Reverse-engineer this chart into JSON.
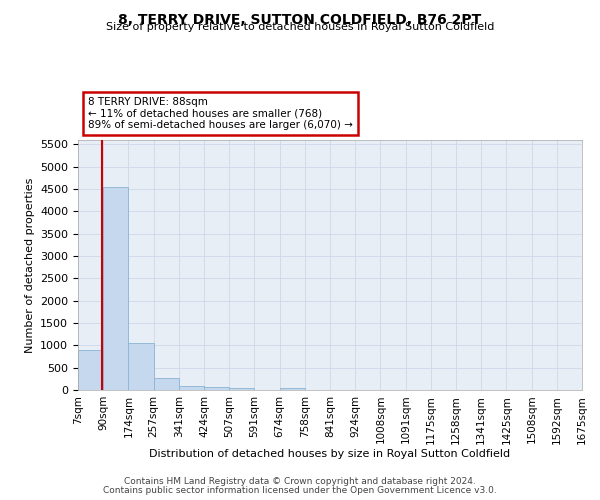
{
  "title": "8, TERRY DRIVE, SUTTON COLDFIELD, B76 2PT",
  "subtitle": "Size of property relative to detached houses in Royal Sutton Coldfield",
  "xlabel": "Distribution of detached houses by size in Royal Sutton Coldfield",
  "ylabel": "Number of detached properties",
  "footnote1": "Contains HM Land Registry data © Crown copyright and database right 2024.",
  "footnote2": "Contains public sector information licensed under the Open Government Licence v3.0.",
  "property_size": 88,
  "annotation_line1": "8 TERRY DRIVE: 88sqm",
  "annotation_line2": "← 11% of detached houses are smaller (768)",
  "annotation_line3": "89% of semi-detached houses are larger (6,070) →",
  "bar_color": "#c5d8ed",
  "bar_edge_color": "#8ab4d4",
  "vline_color": "#cc0000",
  "annotation_box_edgecolor": "#cc0000",
  "grid_color": "#cdd8e8",
  "bg_color": "#e8eef6",
  "bin_edges": [
    7,
    90,
    174,
    257,
    341,
    424,
    507,
    591,
    674,
    758,
    841,
    924,
    1008,
    1091,
    1175,
    1258,
    1341,
    1425,
    1508,
    1592,
    1675
  ],
  "bin_labels": [
    "7sqm",
    "90sqm",
    "174sqm",
    "257sqm",
    "341sqm",
    "424sqm",
    "507sqm",
    "591sqm",
    "674sqm",
    "758sqm",
    "841sqm",
    "924sqm",
    "1008sqm",
    "1091sqm",
    "1175sqm",
    "1258sqm",
    "1341sqm",
    "1425sqm",
    "1508sqm",
    "1592sqm",
    "1675sqm"
  ],
  "bar_heights": [
    900,
    4540,
    1060,
    280,
    85,
    65,
    50,
    0,
    55,
    0,
    0,
    0,
    0,
    0,
    0,
    0,
    0,
    0,
    0,
    0
  ],
  "ylim": [
    0,
    5600
  ],
  "yticks": [
    0,
    500,
    1000,
    1500,
    2000,
    2500,
    3000,
    3500,
    4000,
    4500,
    5000,
    5500
  ]
}
